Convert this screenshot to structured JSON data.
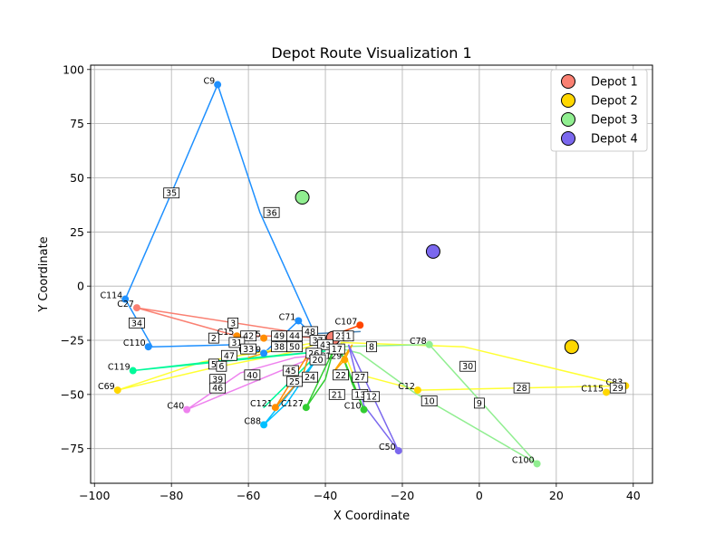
{
  "chart_data": {
    "type": "scatter",
    "title": "Depot Route Visualization 1",
    "xlabel": "X Coordinate",
    "ylabel": "Y Coordinate",
    "xlim": [
      -101,
      45
    ],
    "ylim": [
      -91,
      102
    ],
    "xticks": [
      -100,
      -80,
      -60,
      -40,
      -20,
      0,
      20,
      40
    ],
    "yticks": [
      -75,
      -50,
      -25,
      0,
      25,
      50,
      75,
      100
    ],
    "grid": true,
    "legend": {
      "location": "top-right",
      "entries": [
        {
          "label": "Depot 1",
          "color": "#fa8072"
        },
        {
          "label": "Depot 2",
          "color": "#ffd700"
        },
        {
          "label": "Depot 3",
          "color": "#90ee90"
        },
        {
          "label": "Depot 4",
          "color": "#7b68ee"
        }
      ]
    },
    "depots": [
      {
        "name": "Depot 1",
        "x": -38,
        "y": -24,
        "color": "#fa8072"
      },
      {
        "name": "Depot 2",
        "x": 24,
        "y": -28,
        "color": "#ffd700"
      },
      {
        "name": "Depot 3",
        "x": -46,
        "y": 41,
        "color": "#90ee90"
      },
      {
        "name": "Depot 4",
        "x": -12,
        "y": 16,
        "color": "#7b68ee"
      }
    ],
    "customers": [
      {
        "label": "C9",
        "x": -68,
        "y": 93,
        "color": "#1e90ff"
      },
      {
        "label": "C114",
        "x": -92,
        "y": -6,
        "color": "#1e90ff"
      },
      {
        "label": "C27",
        "x": -89,
        "y": -10,
        "color": "#fa8072"
      },
      {
        "label": "C110",
        "x": -86,
        "y": -28,
        "color": "#1e90ff"
      },
      {
        "label": "C119",
        "x": -90,
        "y": -39,
        "color": "#00fa9a"
      },
      {
        "label": "C69",
        "x": -94,
        "y": -48,
        "color": "#ffd700"
      },
      {
        "label": "C40",
        "x": -76,
        "y": -57,
        "color": "#ee82ee"
      },
      {
        "label": "C15",
        "x": -63,
        "y": -23,
        "color": "#ff8c00"
      },
      {
        "label": "C95",
        "x": -56,
        "y": -24,
        "color": "#ff8c00"
      },
      {
        "label": "C139",
        "x": -56,
        "y": -31,
        "color": "#1e90ff"
      },
      {
        "label": "C71",
        "x": -47,
        "y": -16,
        "color": "#1e90ff"
      },
      {
        "label": "C107",
        "x": -31,
        "y": -18,
        "color": "#ff4500"
      },
      {
        "label": "C88",
        "x": -56,
        "y": -64,
        "color": "#00bfff"
      },
      {
        "label": "C121",
        "x": -53,
        "y": -56,
        "color": "#ff8c00"
      },
      {
        "label": "C127",
        "x": -45,
        "y": -56,
        "color": "#32cd32"
      },
      {
        "label": "C129",
        "x": -35,
        "y": -34,
        "color": "#ffa500"
      },
      {
        "label": "C10",
        "x": -30,
        "y": -57,
        "color": "#32cd32"
      },
      {
        "label": "C50",
        "x": -21,
        "y": -76,
        "color": "#7b68ee"
      },
      {
        "label": "C12",
        "x": -16,
        "y": -48,
        "color": "#ffd700"
      },
      {
        "label": "C78",
        "x": -13,
        "y": -27,
        "color": "#90ee90"
      },
      {
        "label": "C100",
        "x": 15,
        "y": -82,
        "color": "#90ee90"
      },
      {
        "label": "C115",
        "x": 33,
        "y": -49,
        "color": "#ffd700"
      },
      {
        "label": "C83",
        "x": 38,
        "y": -46,
        "color": "#ffd700"
      }
    ],
    "routes": [
      {
        "color": "#1e90ff",
        "points": [
          [
            -42,
            -25
          ],
          [
            -57,
            34
          ],
          [
            -68,
            93
          ],
          [
            -80,
            43
          ],
          [
            -92,
            -6
          ],
          [
            -85,
            -28
          ],
          [
            -62,
            -27
          ],
          [
            -56,
            -31
          ],
          [
            -47,
            -16
          ],
          [
            -42,
            -25
          ]
        ]
      },
      {
        "color": "#fa8072",
        "points": [
          [
            -38,
            -24
          ],
          [
            -89,
            -10
          ],
          [
            -63,
            -23
          ],
          [
            -55,
            -23
          ],
          [
            -38,
            -24
          ]
        ]
      },
      {
        "color": "#ffff33",
        "points": [
          [
            -39,
            -25
          ],
          [
            -72,
            -35
          ],
          [
            -94,
            -48
          ],
          [
            -70,
            -38
          ],
          [
            -50,
            -31
          ],
          [
            -39,
            -25
          ]
        ]
      },
      {
        "color": "#ffff33",
        "points": [
          [
            -36,
            -26
          ],
          [
            -4,
            -28
          ],
          [
            38,
            -46
          ],
          [
            -16,
            -48
          ],
          [
            -33,
            -40
          ],
          [
            -36,
            -26
          ]
        ]
      },
      {
        "color": "#90ee90",
        "points": [
          [
            -38,
            -28
          ],
          [
            -13,
            -27
          ],
          [
            15,
            -82
          ],
          [
            -17,
            -49
          ],
          [
            -31,
            -31
          ],
          [
            -38,
            -28
          ]
        ]
      },
      {
        "color": "#00fa9a",
        "points": [
          [
            -40,
            -30
          ],
          [
            -90,
            -39
          ],
          [
            -65,
            -34
          ],
          [
            -40,
            -30
          ]
        ]
      },
      {
        "color": "#00fa9a",
        "points": [
          [
            -40,
            -28
          ],
          [
            -56,
            -56
          ],
          [
            -40,
            -28
          ]
        ]
      },
      {
        "color": "#32cd32",
        "points": [
          [
            -38,
            -30
          ],
          [
            -45,
            -56
          ],
          [
            -40,
            -43
          ],
          [
            -38,
            -30
          ]
        ]
      },
      {
        "color": "#32cd32",
        "points": [
          [
            -36,
            -30
          ],
          [
            -30,
            -57
          ],
          [
            -33,
            -45
          ],
          [
            -36,
            -30
          ]
        ]
      },
      {
        "color": "#ee82ee",
        "points": [
          [
            -42,
            -32
          ],
          [
            -76,
            -57
          ],
          [
            -62,
            -40
          ],
          [
            -48,
            -33
          ],
          [
            -42,
            -32
          ]
        ]
      },
      {
        "color": "#00bfff",
        "points": [
          [
            -42,
            -33
          ],
          [
            -56,
            -64
          ],
          [
            -50,
            -54
          ],
          [
            -42,
            -33
          ]
        ]
      },
      {
        "color": "#ff8c00",
        "points": [
          [
            -44,
            -30
          ],
          [
            -53,
            -56
          ],
          [
            -46,
            -42
          ],
          [
            -44,
            -30
          ]
        ]
      },
      {
        "color": "#ffa500",
        "points": [
          [
            -33,
            -27
          ],
          [
            -35,
            -34
          ],
          [
            -38,
            -40
          ],
          [
            -33,
            -27
          ]
        ]
      },
      {
        "color": "#7b68ee",
        "points": [
          [
            -34,
            -27
          ],
          [
            -21,
            -76
          ],
          [
            -30,
            -55
          ],
          [
            -34,
            -27
          ]
        ]
      },
      {
        "color": "#4682b4",
        "points": [
          [
            -44,
            -22
          ],
          [
            -31,
            -21
          ],
          [
            -44,
            -22
          ]
        ]
      },
      {
        "color": "#ff4500",
        "points": [
          [
            -37,
            -22
          ],
          [
            -31,
            -18
          ],
          [
            -37,
            -22
          ]
        ]
      },
      {
        "color": "#ffa500",
        "points": [
          [
            -52,
            -29
          ],
          [
            -60,
            -33
          ],
          [
            -52,
            -29
          ]
        ]
      }
    ],
    "edge_labels": [
      {
        "text": "35",
        "x": -80,
        "y": 43
      },
      {
        "text": "36",
        "x": -54,
        "y": 34
      },
      {
        "text": "34",
        "x": -89,
        "y": -17
      },
      {
        "text": "3",
        "x": -64,
        "y": -17
      },
      {
        "text": "2",
        "x": -69,
        "y": -24
      },
      {
        "text": "42",
        "x": -60,
        "y": -23
      },
      {
        "text": "31",
        "x": -63,
        "y": -26
      },
      {
        "text": "33",
        "x": -60,
        "y": -29
      },
      {
        "text": "47",
        "x": -65,
        "y": -32
      },
      {
        "text": "5",
        "x": -69,
        "y": -36
      },
      {
        "text": "6",
        "x": -67,
        "y": -37
      },
      {
        "text": "39",
        "x": -68,
        "y": -43
      },
      {
        "text": "46",
        "x": -68,
        "y": -47
      },
      {
        "text": "40",
        "x": -59,
        "y": -41
      },
      {
        "text": "49",
        "x": -52,
        "y": -23
      },
      {
        "text": "44",
        "x": -48,
        "y": -23
      },
      {
        "text": "38",
        "x": -52,
        "y": -28
      },
      {
        "text": "50",
        "x": -48,
        "y": -28
      },
      {
        "text": "48",
        "x": -44,
        "y": -21
      },
      {
        "text": "37",
        "x": -42,
        "y": -25
      },
      {
        "text": "43",
        "x": -40,
        "y": -27
      },
      {
        "text": "26",
        "x": -43,
        "y": -31
      },
      {
        "text": "20",
        "x": -42,
        "y": -34
      },
      {
        "text": "23",
        "x": -36,
        "y": -23
      },
      {
        "text": "1",
        "x": -34,
        "y": -23
      },
      {
        "text": "17",
        "x": -37,
        "y": -29
      },
      {
        "text": "45",
        "x": -49,
        "y": -39
      },
      {
        "text": "25",
        "x": -48,
        "y": -44
      },
      {
        "text": "24",
        "x": -44,
        "y": -42
      },
      {
        "text": "22",
        "x": -36,
        "y": -41
      },
      {
        "text": "27",
        "x": -31,
        "y": -42
      },
      {
        "text": "21",
        "x": -37,
        "y": -50
      },
      {
        "text": "13",
        "x": -31,
        "y": -50
      },
      {
        "text": "12",
        "x": -28,
        "y": -51
      },
      {
        "text": "8",
        "x": -28,
        "y": -28
      },
      {
        "text": "30",
        "x": -3,
        "y": -37
      },
      {
        "text": "10",
        "x": -13,
        "y": -53
      },
      {
        "text": "9",
        "x": 0,
        "y": -54
      },
      {
        "text": "28",
        "x": 11,
        "y": -47
      },
      {
        "text": "29",
        "x": 36,
        "y": -47
      }
    ]
  }
}
